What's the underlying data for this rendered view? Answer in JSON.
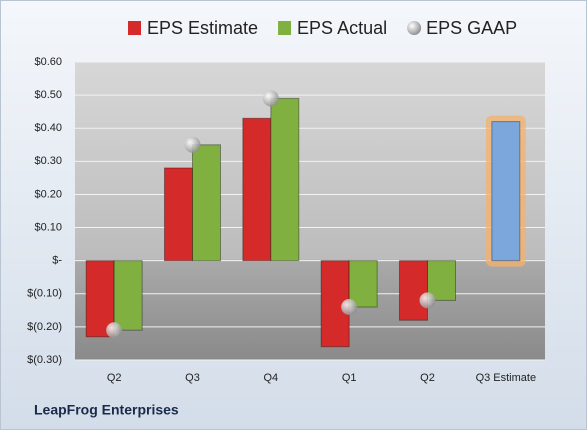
{
  "chart_data": {
    "type": "bar",
    "categories": [
      "Q2",
      "Q3",
      "Q4",
      "Q1",
      "Q2",
      "Q3 Estimate"
    ],
    "series": [
      {
        "name": "EPS Estimate",
        "color": "#d42a2a",
        "colors": [
          "#d42a2a",
          "#d42a2a",
          "#d42a2a",
          "#d42a2a",
          "#d42a2a",
          "#7ba7dc"
        ],
        "values": [
          -0.23,
          0.28,
          0.43,
          -0.26,
          -0.18,
          0.42
        ]
      },
      {
        "name": "EPS Actual",
        "color": "#7fb040",
        "values": [
          -0.21,
          0.35,
          0.49,
          -0.14,
          -0.12,
          null
        ]
      },
      {
        "name": "EPS GAAP",
        "color": "#b8b8b8",
        "marker": "circle",
        "values": [
          -0.21,
          0.35,
          0.49,
          -0.14,
          -0.12,
          null
        ]
      }
    ],
    "ylim": [
      -0.3,
      0.6
    ],
    "yticks": [
      {
        "value": -0.3,
        "label": "$(0.30)"
      },
      {
        "value": -0.2,
        "label": "$(0.20)"
      },
      {
        "value": -0.1,
        "label": "$(0.10)"
      },
      {
        "value": 0,
        "label": "$-"
      },
      {
        "value": 0.1,
        "label": "$0.10"
      },
      {
        "value": 0.2,
        "label": "$0.20"
      },
      {
        "value": 0.3,
        "label": "$0.30"
      },
      {
        "value": 0.4,
        "label": "$0.40"
      },
      {
        "value": 0.5,
        "label": "$0.50"
      },
      {
        "value": 0.6,
        "label": "$0.60"
      }
    ],
    "grid": true,
    "footer": "LeapFrog Enterprises"
  }
}
